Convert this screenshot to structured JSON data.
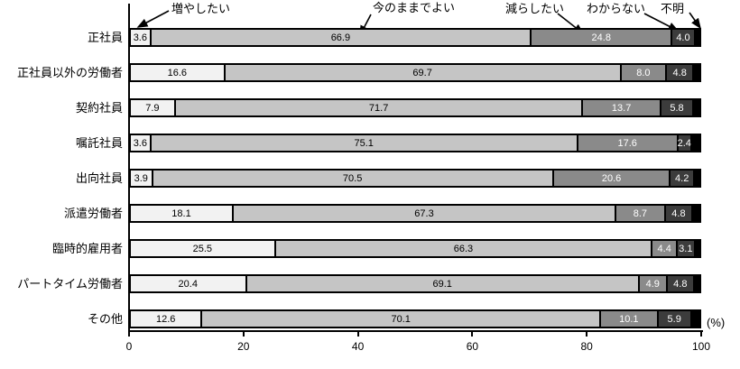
{
  "chart_data": {
    "type": "bar",
    "stacked": true,
    "orientation": "horizontal",
    "title": "",
    "unit_label": "(%)",
    "grid": false,
    "legend_position": "top-callouts-with-arrows",
    "x_axis": {
      "range": [
        0,
        100
      ],
      "ticks": [
        0,
        20,
        40,
        60,
        80,
        100
      ]
    },
    "categories": [
      "正社員",
      "正社員以外の労働者",
      "契約社員",
      "嘱託社員",
      "出向社員",
      "派遣労働者",
      "臨時的雇用者",
      "パートタイム労働者",
      "その他"
    ],
    "series": [
      {
        "name": "増やしたい",
        "color": "#f2f2f2",
        "value_label_color": "#000000",
        "show_value_labels": true,
        "values": [
          3.6,
          16.6,
          7.9,
          3.6,
          3.9,
          18.1,
          25.5,
          20.4,
          12.6
        ]
      },
      {
        "name": "今のままでよい",
        "color": "#c5c5c5",
        "value_label_color": "#000000",
        "show_value_labels": true,
        "values": [
          66.9,
          69.7,
          71.7,
          75.1,
          70.5,
          67.3,
          66.3,
          69.1,
          70.1
        ]
      },
      {
        "name": "減らしたい",
        "color": "#8a8a8a",
        "value_label_color": "#ffffff",
        "show_value_labels": true,
        "values": [
          24.8,
          8.0,
          13.7,
          17.6,
          20.6,
          8.7,
          4.4,
          4.9,
          10.1
        ]
      },
      {
        "name": "わからない",
        "color": "#3c3c3c",
        "value_label_color": "#ffffff",
        "show_value_labels": true,
        "values": [
          4.0,
          4.8,
          5.8,
          2.4,
          4.2,
          4.8,
          3.1,
          4.8,
          5.9
        ]
      },
      {
        "name": "不明",
        "color": "#000000",
        "value_label_color": null,
        "show_value_labels": false,
        "values": [
          0.7,
          0.9,
          0.9,
          1.3,
          0.8,
          1.1,
          0.7,
          0.8,
          1.3
        ]
      }
    ]
  }
}
